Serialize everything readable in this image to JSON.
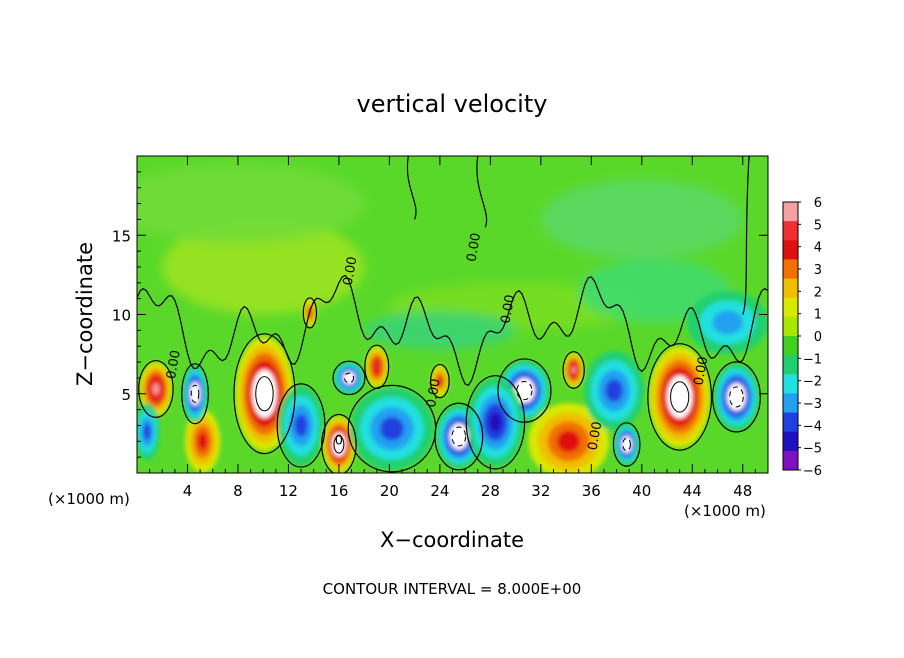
{
  "chart_data": {
    "type": "heatmap",
    "title": "vertical velocity",
    "xlabel": "X−coordinate",
    "ylabel": "Z−coordinate",
    "x_unit_left": "(×1000 m)",
    "x_unit_right": "(×1000 m)",
    "footer": "CONTOUR INTERVAL = 8.000E+00",
    "xlim": [
      0,
      50
    ],
    "ylim": [
      0,
      20
    ],
    "x_ticks": [
      4,
      8,
      12,
      16,
      20,
      24,
      28,
      32,
      36,
      40,
      44,
      48
    ],
    "x_tick_labels": [
      "4",
      "8",
      "12",
      "16",
      "20",
      "24",
      "28",
      "32",
      "36",
      "40",
      "44",
      "48"
    ],
    "y_ticks": [
      5,
      10,
      15
    ],
    "y_tick_labels": [
      "5",
      "10",
      "15"
    ],
    "colorbar": {
      "min": -6,
      "max": 6,
      "labels": [
        "6",
        "5",
        "4",
        "3",
        "2",
        "1",
        "0",
        "−1",
        "−2",
        "−3",
        "−4",
        "−5",
        "−6"
      ],
      "colors": [
        "#f4a0a0",
        "#f03030",
        "#e01010",
        "#f07000",
        "#f0c000",
        "#d8e800",
        "#a8e800",
        "#40d020",
        "#20d070",
        "#20e0e0",
        "#20a0f0",
        "#2040e0",
        "#2010c0",
        "#8010c0"
      ]
    },
    "contour_labels": [
      {
        "text": "0.00",
        "x": 3.2,
        "y": 6.8
      },
      {
        "text": "0.00",
        "x": 17.2,
        "y": 12.7
      },
      {
        "text": "0.00",
        "x": 23.8,
        "y": 5.0
      },
      {
        "text": "0.00",
        "x": 27.0,
        "y": 14.2
      },
      {
        "text": "0.00",
        "x": 29.7,
        "y": 10.3
      },
      {
        "text": "0.00",
        "x": 36.6,
        "y": 2.3
      },
      {
        "text": "0.00",
        "x": 45.0,
        "y": 6.4
      },
      {
        "text": "0",
        "x": 16.0,
        "y": 1.8
      }
    ],
    "features": [
      {
        "kind": "updraft",
        "x": 10.1,
        "z": 5.0,
        "rx": 2.3,
        "rz": 3.6,
        "value": 6
      },
      {
        "kind": "updraft",
        "x": 43.0,
        "z": 4.8,
        "rx": 2.4,
        "rz": 3.2,
        "value": 6
      },
      {
        "kind": "updraft",
        "x": 16.0,
        "z": 1.8,
        "rx": 1.3,
        "rz": 1.8,
        "value": 6
      },
      {
        "kind": "updraft",
        "x": 1.5,
        "z": 5.3,
        "rx": 1.3,
        "rz": 1.7,
        "value": 5
      },
      {
        "kind": "updraft",
        "x": 19.0,
        "z": 6.7,
        "rx": 0.9,
        "rz": 1.3,
        "value": 4
      },
      {
        "kind": "updraft",
        "x": 34.6,
        "z": 6.5,
        "rx": 0.8,
        "rz": 1.1,
        "value": 5
      },
      {
        "kind": "updraft",
        "x": 24.0,
        "z": 5.8,
        "rx": 0.7,
        "rz": 1.0,
        "value": 3
      },
      {
        "kind": "updraft",
        "x": 34.2,
        "z": 2.0,
        "rx": 3.2,
        "rz": 2.4,
        "value": 2.5
      },
      {
        "kind": "updraft",
        "x": 5.2,
        "z": 2.0,
        "rx": 1.4,
        "rz": 2.0,
        "value": 2.5
      },
      {
        "kind": "updraft",
        "x": 13.7,
        "z": 10.1,
        "rx": 0.5,
        "rz": 0.9,
        "value": 3
      },
      {
        "kind": "downdraft",
        "x": 25.5,
        "z": 2.3,
        "rx": 1.8,
        "rz": 2.0,
        "value": -6
      },
      {
        "kind": "downdraft",
        "x": 30.7,
        "z": 5.2,
        "rx": 2.0,
        "rz": 1.9,
        "value": -6
      },
      {
        "kind": "downdraft",
        "x": 47.5,
        "z": 4.8,
        "rx": 1.8,
        "rz": 2.1,
        "value": -6
      },
      {
        "kind": "downdraft",
        "x": 4.6,
        "z": 5.0,
        "rx": 1.0,
        "rz": 1.8,
        "value": -5.5
      },
      {
        "kind": "downdraft",
        "x": 38.8,
        "z": 1.8,
        "rx": 1.0,
        "rz": 1.3,
        "value": -6
      },
      {
        "kind": "downdraft",
        "x": 16.8,
        "z": 6.0,
        "rx": 1.2,
        "rz": 1.0,
        "value": -5.5
      },
      {
        "kind": "downdraft",
        "x": 20.2,
        "z": 2.8,
        "rx": 3.3,
        "rz": 2.6,
        "value": -3
      },
      {
        "kind": "downdraft",
        "x": 13.0,
        "z": 3.0,
        "rx": 1.8,
        "rz": 2.5,
        "value": -3
      },
      {
        "kind": "downdraft",
        "x": 28.4,
        "z": 3.2,
        "rx": 2.2,
        "rz": 2.8,
        "value": -3.5
      },
      {
        "kind": "downdraft",
        "x": 37.8,
        "z": 5.2,
        "rx": 2.4,
        "rz": 2.5,
        "value": -2.5
      },
      {
        "kind": "downdraft",
        "x": 46.8,
        "z": 9.5,
        "rx": 3.2,
        "rz": 2.0,
        "value": -1.5
      },
      {
        "kind": "downdraft",
        "x": 0.8,
        "z": 2.6,
        "rx": 1.0,
        "rz": 1.8,
        "value": -2.5
      }
    ]
  }
}
